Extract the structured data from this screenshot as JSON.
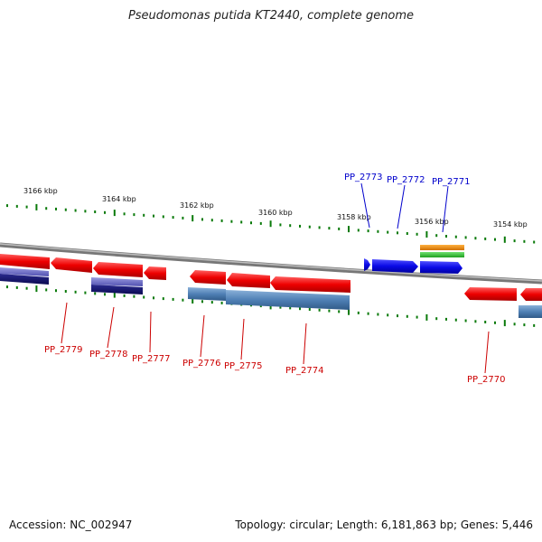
{
  "title": "Pseudomonas putida KT2440, complete genome",
  "footer": {
    "accession": "Accession: NC_002947",
    "summary": "Topology: circular; Length: 6,181,863 bp; Genes: 5,446"
  },
  "ticks": [
    {
      "label": "3166 kbp"
    },
    {
      "label": "3164 kbp"
    },
    {
      "label": "3162 kbp"
    },
    {
      "label": "3160 kbp"
    },
    {
      "label": "3158 kbp"
    },
    {
      "label": "3156 kbp"
    },
    {
      "label": "3154 kbp"
    }
  ],
  "gene_labels": [
    {
      "label": "PP_2773",
      "strand": "forward"
    },
    {
      "label": "PP_2772",
      "strand": "forward"
    },
    {
      "label": "PP_2771",
      "strand": "forward"
    },
    {
      "label": "PP_2779",
      "strand": "reverse"
    },
    {
      "label": "PP_2778",
      "strand": "reverse"
    },
    {
      "label": "PP_2777",
      "strand": "reverse"
    },
    {
      "label": "PP_2776",
      "strand": "reverse"
    },
    {
      "label": "PP_2775",
      "strand": "reverse"
    },
    {
      "label": "PP_2774",
      "strand": "reverse"
    },
    {
      "label": "PP_2770",
      "strand": "reverse"
    }
  ],
  "colors": {
    "backbone": "#8a8a8a",
    "forward_gene": "#0a0ae6",
    "reverse_gene": "#e01010",
    "feature_blue": "#5080b8",
    "feature_navy": "#1e1e80",
    "feature_orange": "#e08010",
    "feature_green": "#30c030",
    "tick": "#0a7a0a",
    "forward_label": "#0000cc",
    "reverse_label": "#cc0000"
  }
}
